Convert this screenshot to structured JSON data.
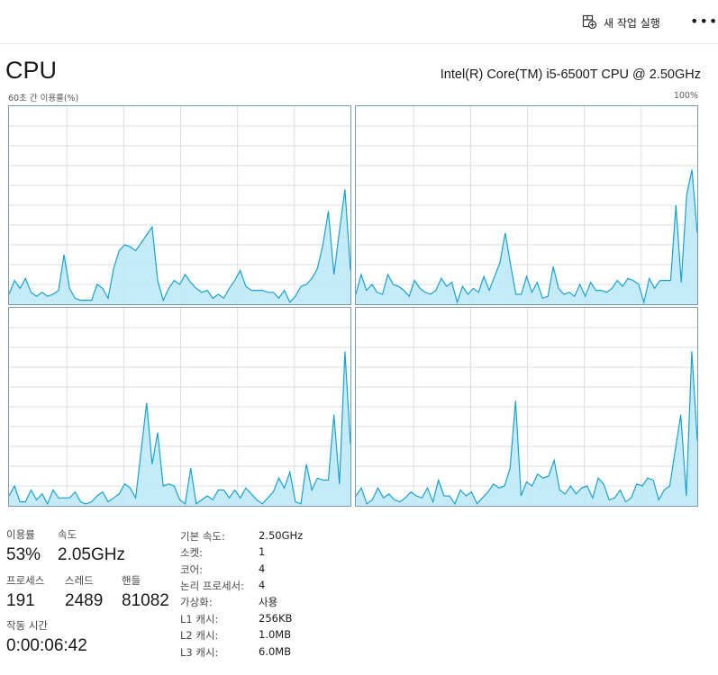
{
  "toolbar": {
    "run_task_label": "새 작업 실행",
    "more_label": "•••"
  },
  "header": {
    "title": "CPU",
    "processor": "Intel(R) Core(TM) i5-6500T CPU @ 2.50GHz"
  },
  "graph": {
    "axis_left": "60초 간 이용률(%)",
    "axis_right": "100%",
    "line_color": "#17a2d6",
    "fill_color": "#bfe9f8",
    "grid_color": "#d9dfe3",
    "cores": [
      {
        "values": [
          5,
          12,
          8,
          13,
          6,
          4,
          6,
          4,
          5,
          7,
          25,
          8,
          3,
          2,
          2,
          2,
          10,
          8,
          3,
          18,
          27,
          30,
          29,
          27,
          31,
          35,
          39,
          12,
          2,
          8,
          12,
          10,
          15,
          11,
          8,
          6,
          7,
          3,
          5,
          3,
          8,
          12,
          17,
          9,
          7,
          7,
          7,
          6,
          6,
          3,
          7,
          1,
          4,
          9,
          10,
          13,
          18,
          30,
          47,
          15,
          37,
          58,
          17
        ]
      },
      {
        "values": [
          5,
          15,
          7,
          10,
          6,
          5,
          15,
          10,
          9,
          7,
          4,
          12,
          8,
          6,
          5,
          7,
          13,
          9,
          11,
          1,
          9,
          5,
          8,
          6,
          14,
          7,
          14,
          21,
          36,
          20,
          5,
          5,
          14,
          6,
          11,
          3,
          4,
          19,
          8,
          5,
          6,
          4,
          10,
          4,
          11,
          7,
          7,
          6,
          8,
          12,
          9,
          13,
          12,
          10,
          1,
          13,
          8,
          12,
          12,
          12,
          50,
          11,
          55,
          68,
          36
        ]
      },
      {
        "values": [
          5,
          10,
          2,
          2,
          8,
          3,
          6,
          1,
          8,
          4,
          4,
          4,
          7,
          2,
          1,
          2,
          5,
          7,
          2,
          4,
          6,
          11,
          9,
          4,
          28,
          52,
          21,
          37,
          10,
          11,
          10,
          3,
          1,
          19,
          1,
          3,
          5,
          3,
          8,
          8,
          4,
          8,
          4,
          9,
          6,
          3,
          1,
          4,
          7,
          14,
          9,
          17,
          2,
          1,
          21,
          8,
          14,
          13,
          13,
          46,
          11,
          78,
          31
        ]
      },
      {
        "values": [
          5,
          9,
          1,
          3,
          9,
          4,
          6,
          3,
          2,
          4,
          7,
          5,
          4,
          9,
          2,
          13,
          5,
          5,
          1,
          8,
          5,
          7,
          1,
          4,
          7,
          11,
          9,
          10,
          19,
          53,
          5,
          12,
          10,
          16,
          14,
          15,
          23,
          8,
          6,
          10,
          6,
          9,
          10,
          4,
          14,
          11,
          3,
          4,
          8,
          2,
          4,
          11,
          10,
          14,
          13,
          3,
          8,
          10,
          28,
          46,
          5,
          78,
          33
        ]
      }
    ]
  },
  "stats": {
    "utilization": {
      "label": "이용률",
      "value": "53%"
    },
    "speed": {
      "label": "속도",
      "value": "2.05GHz"
    },
    "processes": {
      "label": "프로세스",
      "value": "191"
    },
    "threads": {
      "label": "스레드",
      "value": "2489"
    },
    "handles": {
      "label": "핸들",
      "value": "81082"
    },
    "uptime": {
      "label": "작동 시간",
      "value": "0:00:06:42"
    }
  },
  "details": [
    {
      "label": "기본 속도:",
      "value": "2.50GHz"
    },
    {
      "label": "소켓:",
      "value": "1"
    },
    {
      "label": "코어:",
      "value": "4"
    },
    {
      "label": "논리 프로세서:",
      "value": "4"
    },
    {
      "label": "가상화:",
      "value": "사용"
    },
    {
      "label": "L1 캐시:",
      "value": "256KB"
    },
    {
      "label": "L2 캐시:",
      "value": "1.0MB"
    },
    {
      "label": "L3 캐시:",
      "value": "6.0MB"
    }
  ]
}
